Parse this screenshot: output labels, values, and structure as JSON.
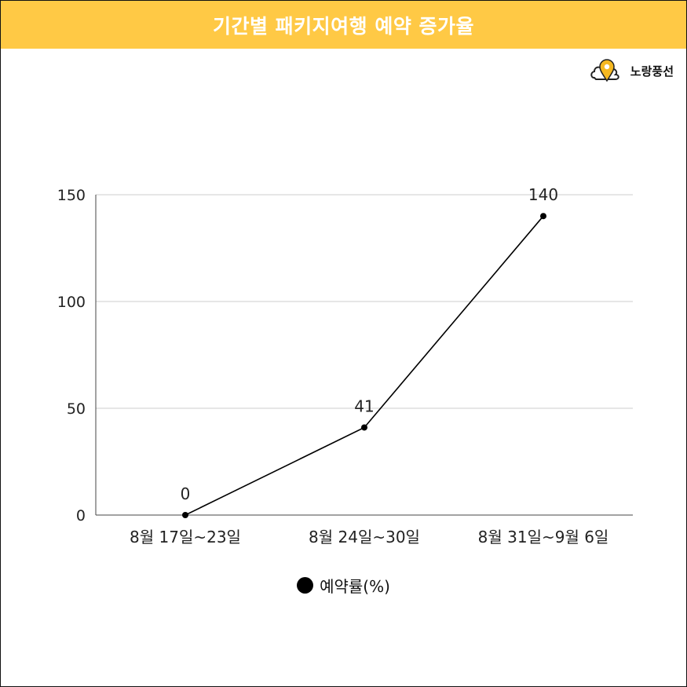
{
  "header": {
    "title": "기간별 패키지여행 예약 증가율",
    "accent_color": "#ffc945"
  },
  "brand": {
    "name": "노랑풍선",
    "icon": "balloon-cloud-icon",
    "color": "#f5b820"
  },
  "chart_data": {
    "type": "line",
    "title": "기간별 패키지여행 예약 증가율",
    "categories": [
      "8월 17일~23일",
      "8월 24일~30일",
      "8월 31일~9월 6일"
    ],
    "series": [
      {
        "name": "예약률(%)",
        "values": [
          0,
          41,
          140
        ],
        "color": "#000000"
      }
    ],
    "ylim": [
      0,
      150
    ],
    "yticks": [
      0,
      50,
      100,
      150
    ],
    "ytick_labels": [
      "0",
      "50",
      "100",
      "150"
    ],
    "grid": true,
    "legend_position": "bottom",
    "data_labels": [
      "0",
      "41",
      "140"
    ],
    "xlabel": "",
    "ylabel": ""
  }
}
